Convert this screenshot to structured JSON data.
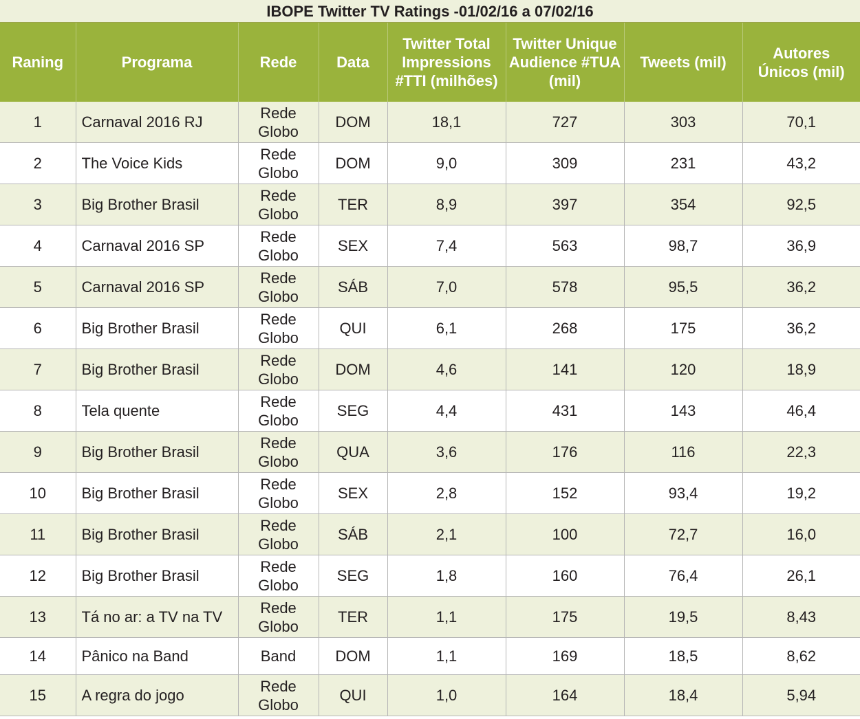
{
  "title": "IBOPE Twitter TV Ratings -01/02/16 a 07/02/16",
  "headers": {
    "rank": "Raning",
    "programa": "Programa",
    "rede": "Rede",
    "data": "Data",
    "tti": "Twitter Total Impressions #TTI (milhões)",
    "tua": "Twitter Unique Audience #TUA (mil)",
    "tweets": "Tweets (mil)",
    "autores": "Autores Únicos (mil)"
  },
  "colors": {
    "header_bg": "#9ab33c",
    "alt_row_bg": "#eef1dc",
    "plain_row_bg": "#ffffff"
  },
  "rows": [
    {
      "rank": "1",
      "programa": "Carnaval 2016 RJ",
      "rede": "Rede Globo",
      "data": "DOM",
      "tti": "18,1",
      "tua": "727",
      "tweets": "303",
      "autores": "70,1"
    },
    {
      "rank": "2",
      "programa": "The Voice Kids",
      "rede": "Rede Globo",
      "data": "DOM",
      "tti": "9,0",
      "tua": "309",
      "tweets": "231",
      "autores": "43,2"
    },
    {
      "rank": "3",
      "programa": "Big Brother Brasil",
      "rede": "Rede Globo",
      "data": "TER",
      "tti": "8,9",
      "tua": "397",
      "tweets": "354",
      "autores": "92,5"
    },
    {
      "rank": "4",
      "programa": "Carnaval 2016 SP",
      "rede": "Rede Globo",
      "data": "SEX",
      "tti": "7,4",
      "tua": "563",
      "tweets": "98,7",
      "autores": "36,9"
    },
    {
      "rank": "5",
      "programa": "Carnaval 2016 SP",
      "rede": "Rede Globo",
      "data": "SÁB",
      "tti": "7,0",
      "tua": "578",
      "tweets": "95,5",
      "autores": "36,2"
    },
    {
      "rank": "6",
      "programa": "Big Brother Brasil",
      "rede": "Rede Globo",
      "data": "QUI",
      "tti": "6,1",
      "tua": "268",
      "tweets": "175",
      "autores": "36,2"
    },
    {
      "rank": "7",
      "programa": "Big Brother Brasil",
      "rede": "Rede Globo",
      "data": "DOM",
      "tti": "4,6",
      "tua": "141",
      "tweets": "120",
      "autores": "18,9"
    },
    {
      "rank": "8",
      "programa": "Tela quente",
      "rede": "Rede Globo",
      "data": "SEG",
      "tti": "4,4",
      "tua": "431",
      "tweets": "143",
      "autores": "46,4"
    },
    {
      "rank": "9",
      "programa": "Big Brother Brasil",
      "rede": "Rede Globo",
      "data": "QUA",
      "tti": "3,6",
      "tua": "176",
      "tweets": "116",
      "autores": "22,3"
    },
    {
      "rank": "10",
      "programa": "Big Brother Brasil",
      "rede": "Rede Globo",
      "data": "SEX",
      "tti": "2,8",
      "tua": "152",
      "tweets": "93,4",
      "autores": "19,2"
    },
    {
      "rank": "11",
      "programa": "Big Brother Brasil",
      "rede": "Rede Globo",
      "data": "SÁB",
      "tti": "2,1",
      "tua": "100",
      "tweets": "72,7",
      "autores": "16,0"
    },
    {
      "rank": "12",
      "programa": "Big Brother Brasil",
      "rede": "Rede Globo",
      "data": "SEG",
      "tti": "1,8",
      "tua": "160",
      "tweets": "76,4",
      "autores": "26,1"
    },
    {
      "rank": "13",
      "programa": "Tá no ar: a TV na TV",
      "rede": "Rede Globo",
      "data": "TER",
      "tti": "1,1",
      "tua": "175",
      "tweets": "19,5",
      "autores": "8,43"
    },
    {
      "rank": "14",
      "programa": "Pânico na Band",
      "rede": "Band",
      "data": "DOM",
      "tti": "1,1",
      "tua": "169",
      "tweets": "18,5",
      "autores": "8,62"
    },
    {
      "rank": "15",
      "programa": "A regra do jogo",
      "rede": "Rede Globo",
      "data": "QUI",
      "tti": "1,0",
      "tua": "164",
      "tweets": "18,4",
      "autores": "5,94"
    }
  ]
}
